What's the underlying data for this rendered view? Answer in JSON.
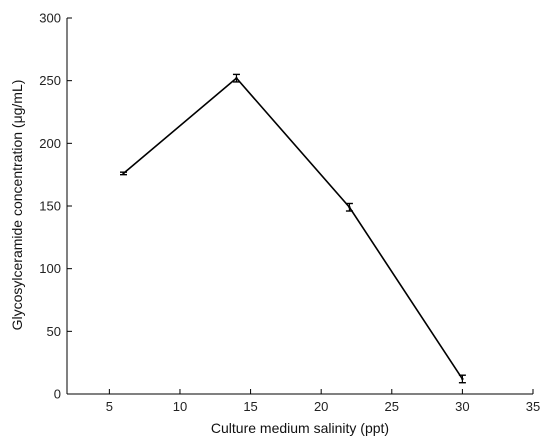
{
  "chart_data": {
    "type": "line",
    "title": "",
    "xlabel": "Culture medium salinity (ppt)",
    "ylabel": "Glycosylceramide concentration (μg/mL)",
    "xlim": [
      2,
      35
    ],
    "ylim": [
      0,
      300
    ],
    "xticks": [
      5,
      10,
      15,
      20,
      25,
      30,
      35
    ],
    "yticks": [
      0,
      50,
      100,
      150,
      200,
      250,
      300
    ],
    "grid": false,
    "legend": "none",
    "series": [
      {
        "x": [
          6,
          14,
          22,
          30
        ],
        "y": [
          176,
          252,
          149,
          12
        ],
        "error": [
          1,
          3,
          3,
          3
        ],
        "color": "#000000"
      }
    ]
  }
}
